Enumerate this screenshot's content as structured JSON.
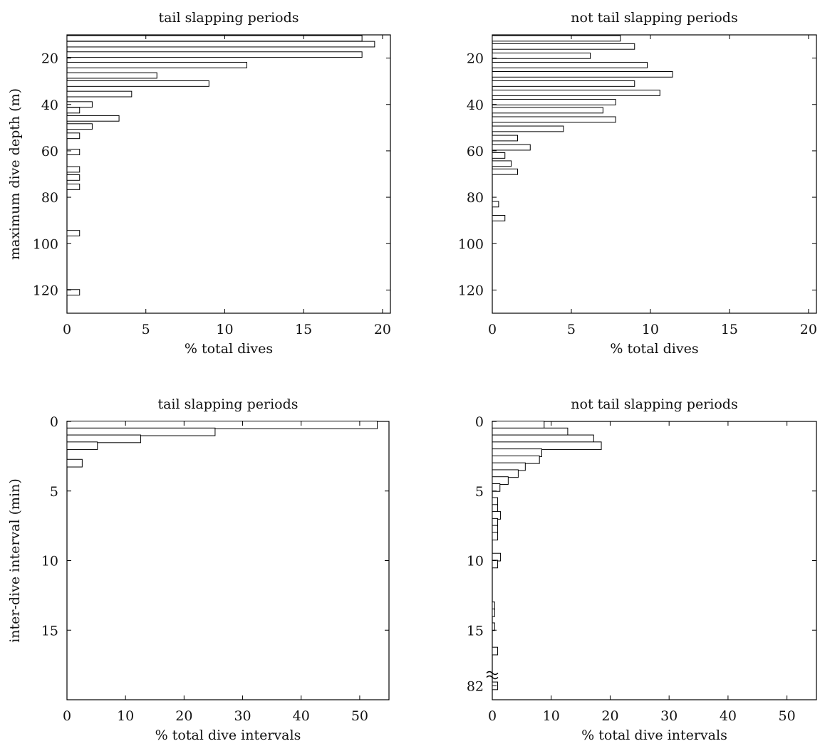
{
  "chart_data": [
    {
      "type": "bar",
      "orientation": "horizontal",
      "title": "tail slapping periods",
      "xlabel": "% total dives",
      "ylabel": "maximum dive depth (m)",
      "xlim": [
        0,
        20.5
      ],
      "ylim": [
        130,
        10
      ],
      "xticks": [
        0,
        5,
        10,
        15,
        20
      ],
      "yticks": [
        20,
        40,
        60,
        80,
        100,
        120
      ],
      "bin_width": 2.4,
      "bins": [
        {
          "y": 11.5,
          "value": 18.7
        },
        {
          "y": 14.0,
          "value": 19.5
        },
        {
          "y": 18.5,
          "value": 18.7
        },
        {
          "y": 23.0,
          "value": 11.4
        },
        {
          "y": 27.5,
          "value": 5.7
        },
        {
          "y": 31.0,
          "value": 9.0
        },
        {
          "y": 35.5,
          "value": 4.1
        },
        {
          "y": 40.0,
          "value": 1.6
        },
        {
          "y": 42.5,
          "value": 0.8
        },
        {
          "y": 46.0,
          "value": 3.3
        },
        {
          "y": 49.5,
          "value": 1.6
        },
        {
          "y": 53.5,
          "value": 0.8
        },
        {
          "y": 60.5,
          "value": 0.8
        },
        {
          "y": 68.0,
          "value": 0.8
        },
        {
          "y": 71.5,
          "value": 0.8
        },
        {
          "y": 75.5,
          "value": 0.8
        },
        {
          "y": 95.5,
          "value": 0.8
        },
        {
          "y": 121.0,
          "value": 0.8
        }
      ]
    },
    {
      "type": "bar",
      "orientation": "horizontal",
      "title": "not tail slapping periods",
      "xlabel": "% total dives",
      "ylabel": "",
      "xlim": [
        0,
        20.5
      ],
      "ylim": [
        130,
        10
      ],
      "xticks": [
        0,
        5,
        10,
        15,
        20
      ],
      "yticks": [
        20,
        40,
        60,
        80,
        100,
        120
      ],
      "bin_width": 2.4,
      "bins": [
        {
          "y": 11.5,
          "value": 8.1
        },
        {
          "y": 15.0,
          "value": 9.0
        },
        {
          "y": 19.0,
          "value": 6.2
        },
        {
          "y": 23.0,
          "value": 9.8
        },
        {
          "y": 27.0,
          "value": 11.4
        },
        {
          "y": 31.0,
          "value": 9.0
        },
        {
          "y": 35.0,
          "value": 10.6
        },
        {
          "y": 39.0,
          "value": 7.8
        },
        {
          "y": 42.5,
          "value": 7.0
        },
        {
          "y": 46.5,
          "value": 7.8
        },
        {
          "y": 50.5,
          "value": 4.5
        },
        {
          "y": 54.5,
          "value": 1.6
        },
        {
          "y": 58.5,
          "value": 2.4
        },
        {
          "y": 62.0,
          "value": 0.8
        },
        {
          "y": 65.5,
          "value": 1.2
        },
        {
          "y": 69.0,
          "value": 1.6
        },
        {
          "y": 83.0,
          "value": 0.4
        },
        {
          "y": 89.0,
          "value": 0.8
        }
      ]
    },
    {
      "type": "bar",
      "orientation": "horizontal",
      "title": "tail slapping periods",
      "xlabel": "% total dive intervals",
      "ylabel": "inter-dive interval (min)",
      "xlim": [
        0,
        55
      ],
      "ylim": [
        20,
        0
      ],
      "xticks": [
        0,
        10,
        20,
        30,
        40,
        50
      ],
      "yticks": [
        0,
        5,
        10,
        15
      ],
      "bin_width": 0.55,
      "bins": [
        {
          "y": 0.25,
          "value": 53.0
        },
        {
          "y": 0.75,
          "value": 25.3
        },
        {
          "y": 1.25,
          "value": 12.6
        },
        {
          "y": 1.75,
          "value": 5.2
        },
        {
          "y": 3.0,
          "value": 2.6
        }
      ]
    },
    {
      "type": "bar",
      "orientation": "horizontal",
      "title": "not tail slapping periods",
      "xlabel": "% total dive intervals",
      "ylabel": "",
      "xlim": [
        0,
        55
      ],
      "ylim": [
        20,
        0
      ],
      "xticks": [
        0,
        10,
        20,
        30,
        40,
        50
      ],
      "yticks": [
        0,
        5,
        10,
        15
      ],
      "y_break_label": "82",
      "bin_width": 0.55,
      "bins": [
        {
          "y": 0.25,
          "value": 8.8
        },
        {
          "y": 0.75,
          "value": 12.8
        },
        {
          "y": 1.25,
          "value": 17.2
        },
        {
          "y": 1.75,
          "value": 18.5
        },
        {
          "y": 2.25,
          "value": 8.4
        },
        {
          "y": 2.75,
          "value": 8.0
        },
        {
          "y": 3.25,
          "value": 5.6
        },
        {
          "y": 3.75,
          "value": 4.4
        },
        {
          "y": 4.25,
          "value": 2.7
        },
        {
          "y": 4.75,
          "value": 1.3
        },
        {
          "y": 5.75,
          "value": 0.9
        },
        {
          "y": 6.25,
          "value": 0.9
        },
        {
          "y": 6.75,
          "value": 1.4
        },
        {
          "y": 7.25,
          "value": 0.9
        },
        {
          "y": 7.75,
          "value": 0.9
        },
        {
          "y": 8.25,
          "value": 0.9
        },
        {
          "y": 9.75,
          "value": 1.4
        },
        {
          "y": 10.25,
          "value": 0.9
        },
        {
          "y": 13.25,
          "value": 0.4
        },
        {
          "y": 13.75,
          "value": 0.4
        },
        {
          "y": 14.75,
          "value": 0.4
        },
        {
          "y": 16.5,
          "value": 0.9
        },
        {
          "y": 19.0,
          "value": 0.9,
          "label": "82"
        }
      ]
    }
  ]
}
